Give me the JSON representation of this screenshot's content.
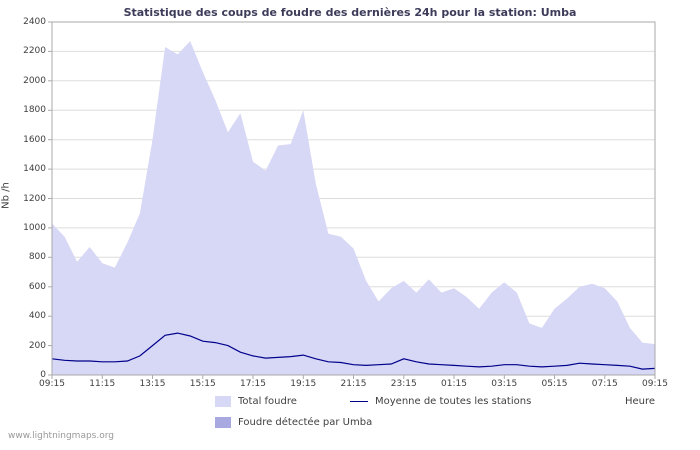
{
  "title": "Statistique des coups de foudre des dernières 24h pour la station: Umba",
  "ylabel": "Nb /h",
  "xlabel": "Heure",
  "watermark": "www.lightningmaps.org",
  "legend": {
    "total": "Total foudre",
    "moyenne": "Moyenne de toutes les stations",
    "umba": "Foudre détectée par Umba"
  },
  "colors": {
    "total_fill": "#d7d7f6",
    "umba_fill": "#a9a9e2",
    "moyenne_line": "#00008b",
    "grid": "#dddddd",
    "frame": "#aaaaaa",
    "text": "#404040",
    "title_text": "#3c3c5a",
    "watermark_text": "#999999"
  },
  "chart_data": {
    "type": "area",
    "title": "Statistique des coups de foudre des dernières 24h pour la station: Umba",
    "xlabel": "Heure",
    "ylabel": "Nb /h",
    "ylim": [
      0,
      2400
    ],
    "yticks": [
      0,
      200,
      400,
      600,
      800,
      1000,
      1200,
      1400,
      1600,
      1800,
      2000,
      2200,
      2400
    ],
    "xtick_labels": [
      "09:15",
      "11:15",
      "13:15",
      "15:15",
      "17:15",
      "19:15",
      "21:15",
      "23:15",
      "01:15",
      "03:15",
      "05:15",
      "07:15",
      "09:15"
    ],
    "x_interval_minutes": 30,
    "grid": "horizontal",
    "legend_position": "bottom",
    "series": [
      {
        "name": "Total foudre",
        "type": "area",
        "color": "#d7d7f6",
        "values": [
          1030,
          940,
          770,
          870,
          760,
          730,
          900,
          1100,
          1600,
          2230,
          2180,
          2270,
          2060,
          1870,
          1650,
          1780,
          1450,
          1390,
          1560,
          1570,
          1800,
          1300,
          960,
          940,
          860,
          640,
          500,
          590,
          640,
          560,
          650,
          560,
          590,
          530,
          450,
          560,
          630,
          560,
          350,
          320,
          450,
          520,
          600,
          620,
          590,
          500,
          320,
          220,
          210
        ]
      },
      {
        "name": "Foudre détectée par Umba",
        "type": "area",
        "color": "#a9a9e2",
        "values": [
          0,
          0,
          0,
          0,
          0,
          0,
          0,
          0,
          0,
          0,
          0,
          0,
          0,
          0,
          0,
          0,
          0,
          0,
          0,
          0,
          0,
          0,
          0,
          0,
          0,
          0,
          0,
          0,
          0,
          0,
          0,
          0,
          0,
          0,
          0,
          0,
          0,
          0,
          0,
          0,
          0,
          0,
          0,
          0,
          0,
          0,
          0,
          0,
          0
        ]
      },
      {
        "name": "Moyenne de toutes les stations",
        "type": "line",
        "color": "#00008b",
        "values": [
          110,
          100,
          95,
          95,
          90,
          90,
          95,
          130,
          200,
          270,
          285,
          265,
          230,
          220,
          200,
          155,
          130,
          115,
          120,
          125,
          135,
          110,
          90,
          85,
          70,
          65,
          70,
          75,
          110,
          90,
          75,
          70,
          65,
          60,
          55,
          60,
          70,
          70,
          60,
          55,
          60,
          65,
          80,
          75,
          70,
          65,
          60,
          40,
          45
        ]
      }
    ]
  }
}
